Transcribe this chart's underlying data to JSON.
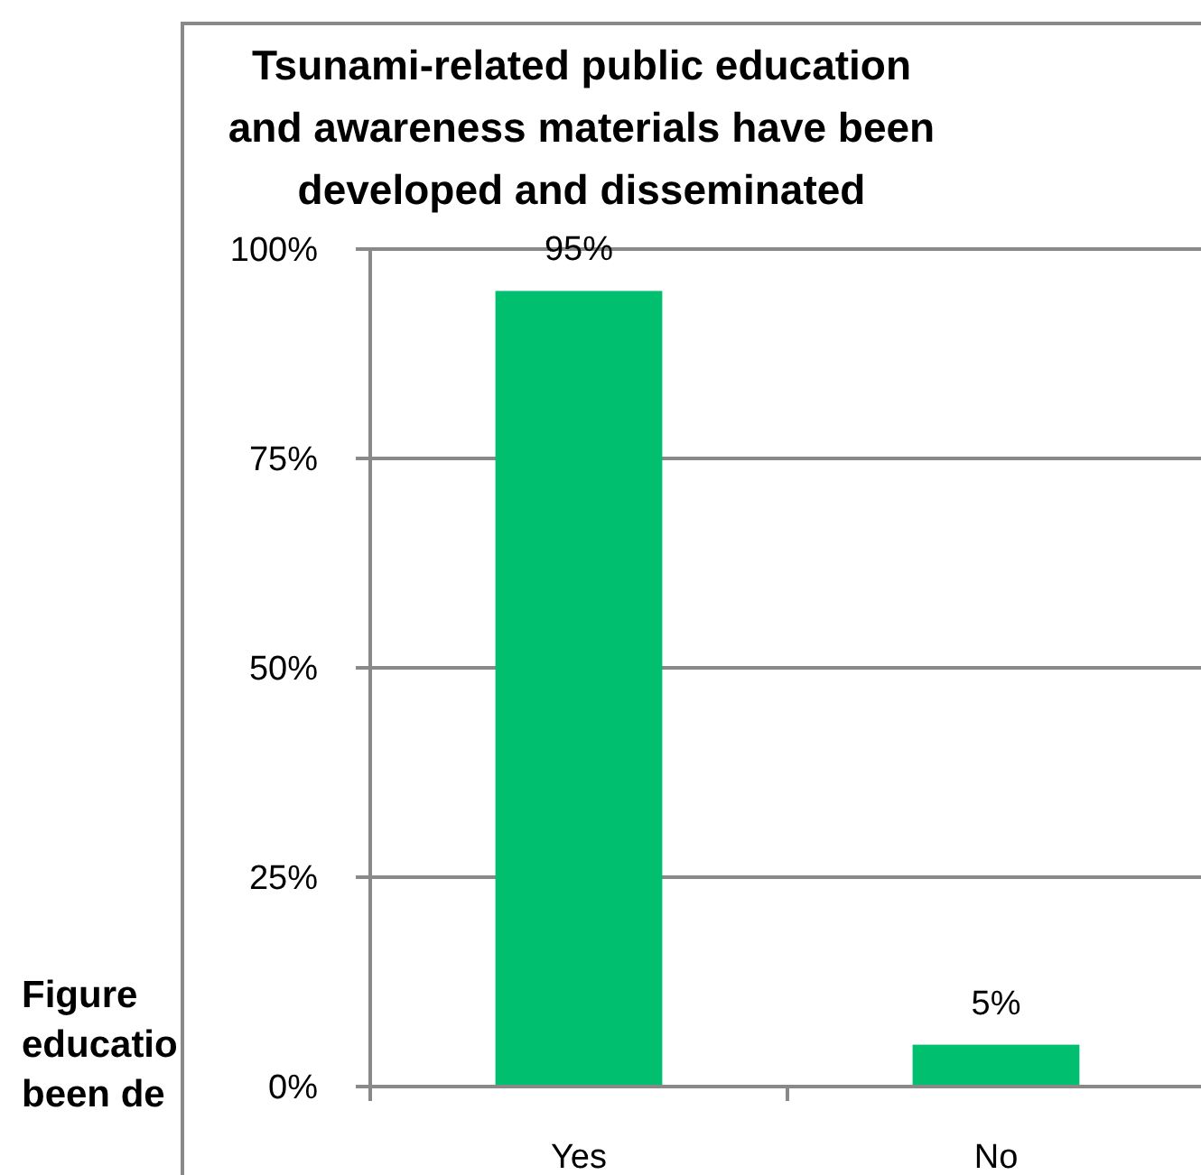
{
  "chart_data": {
    "type": "bar",
    "title": "Tsunami-related public education and awareness materials have been developed and disseminated",
    "categories": [
      "Yes",
      "No"
    ],
    "values": [
      95,
      5
    ],
    "color": "#00bf6f",
    "value_labels": [
      "95%",
      "5%"
    ],
    "ylim": [
      0,
      100
    ],
    "yticks": [
      {
        "value": 0,
        "label": "0%"
      },
      {
        "value": 25,
        "label": "25%"
      },
      {
        "value": 50,
        "label": "50%"
      },
      {
        "value": 75,
        "label": "75%"
      },
      {
        "value": 100,
        "label": "100%"
      }
    ],
    "grid": "y",
    "annotations": [
      "Figure",
      "educatio",
      "been de"
    ]
  }
}
